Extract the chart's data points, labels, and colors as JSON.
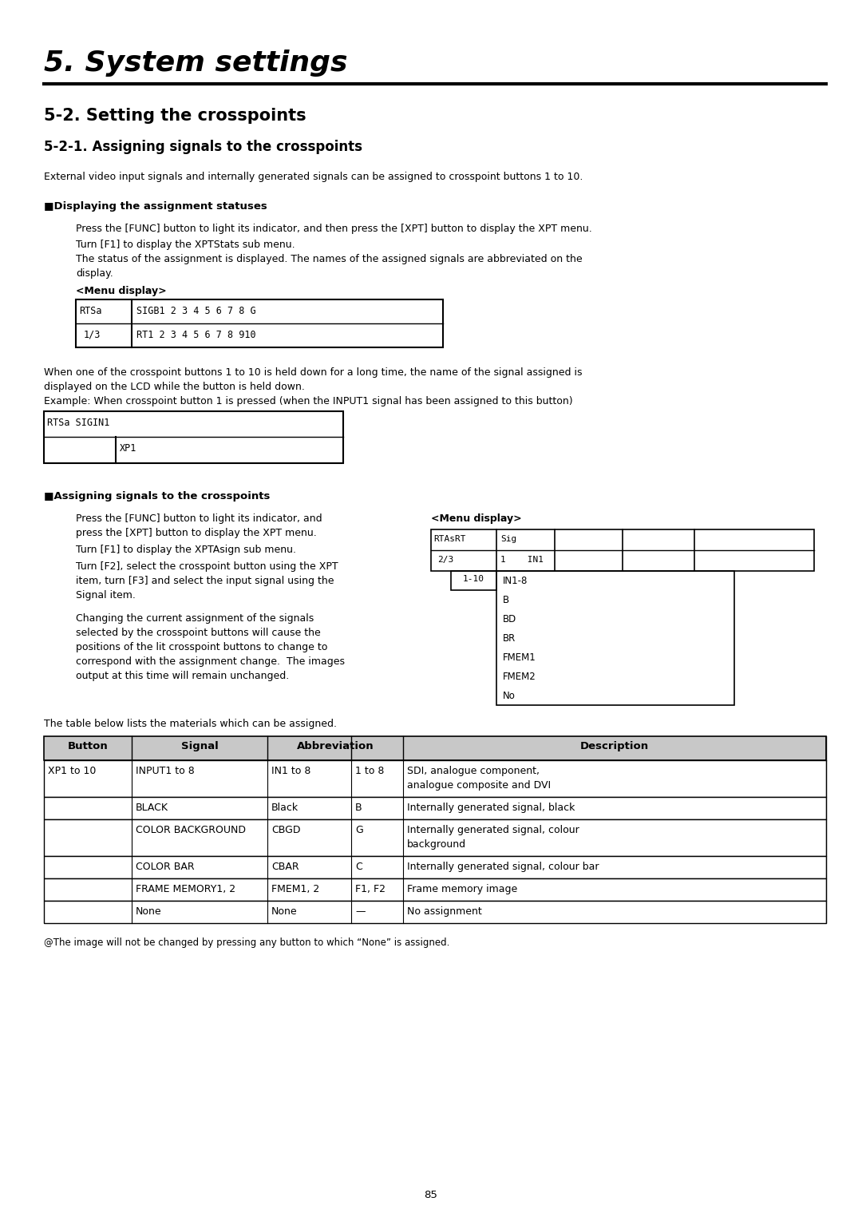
{
  "page_width": 10.8,
  "page_height": 15.24,
  "bg_color": "#ffffff",
  "title": "5. System settings",
  "h2": "5-2. Setting the crosspoints",
  "h3": "5-2-1. Assigning signals to the crosspoints",
  "intro_text": "External video input signals and internally generated signals can be assigned to crosspoint buttons 1 to 10.",
  "section1_head": "■Displaying the assignment statuses",
  "s1_p1": "Press the [FUNC] button to light its indicator, and then press the [XPT] button to display the XPT menu.",
  "s1_p2": "Turn [F1] to display the XPTStats sub menu.",
  "s1_p3a": "The status of the assignment is displayed. The names of the assigned signals are abbreviated on the",
  "s1_p3b": "display.",
  "menu_label1": "<Menu display>",
  "between1a": "When one of the crosspoint buttons 1 to 10 is held down for a long time, the name of the signal assigned is",
  "between1b": "displayed on the LCD while the button is held down.",
  "between2": "Example: When crosspoint button 1 is pressed (when the INPUT1 signal has been assigned to this button)",
  "section2_head": "■Assigning signals to the crosspoints",
  "s2_p1a": "Press the [FUNC] button to light its indicator, and",
  "s2_p1b": "press the [XPT] button to display the XPT menu.",
  "s2_p2": "Turn [F1] to display the XPTAsign sub menu.",
  "s2_p3a": "Turn [F2], select the crosspoint button using the XPT",
  "s2_p3b": "item, turn [F3] and select the input signal using the",
  "s2_p3c": "Signal item.",
  "s2_p4a": "Changing the current assignment of the signals",
  "s2_p4b": "selected by the crosspoint buttons will cause the",
  "s2_p4c": "positions of the lit crosspoint buttons to change to",
  "s2_p4d": "correspond with the assignment change.  The images",
  "s2_p4e": "output at this time will remain unchanged.",
  "menu_label2": "<Menu display>",
  "lcd3_sub_items": [
    "IN1-8",
    "B",
    "BD",
    "BR",
    "FMEM1",
    "FMEM2",
    "No"
  ],
  "table_intro": "The table below lists the materials which can be assigned.",
  "table_rows": [
    [
      "XP1 to 10",
      "INPUT1 to 8",
      "IN1 to 8",
      "1 to 8",
      "SDI, analogue component,",
      "analogue composite and DVI"
    ],
    [
      "",
      "BLACK",
      "Black",
      "B",
      "Internally generated signal, black",
      ""
    ],
    [
      "",
      "COLOR BACKGROUND",
      "CBGD",
      "G",
      "Internally generated signal, colour",
      "background"
    ],
    [
      "",
      "COLOR BAR",
      "CBAR",
      "C",
      "Internally generated signal, colour bar",
      ""
    ],
    [
      "",
      "FRAME MEMORY1, 2",
      "FMEM1, 2",
      "F1, F2",
      "Frame memory image",
      ""
    ],
    [
      "",
      "None",
      "None",
      "—",
      "No assignment",
      ""
    ]
  ],
  "footer": "@The image will not be changed by pressing any button to which “None” is assigned.",
  "page_num": "85"
}
